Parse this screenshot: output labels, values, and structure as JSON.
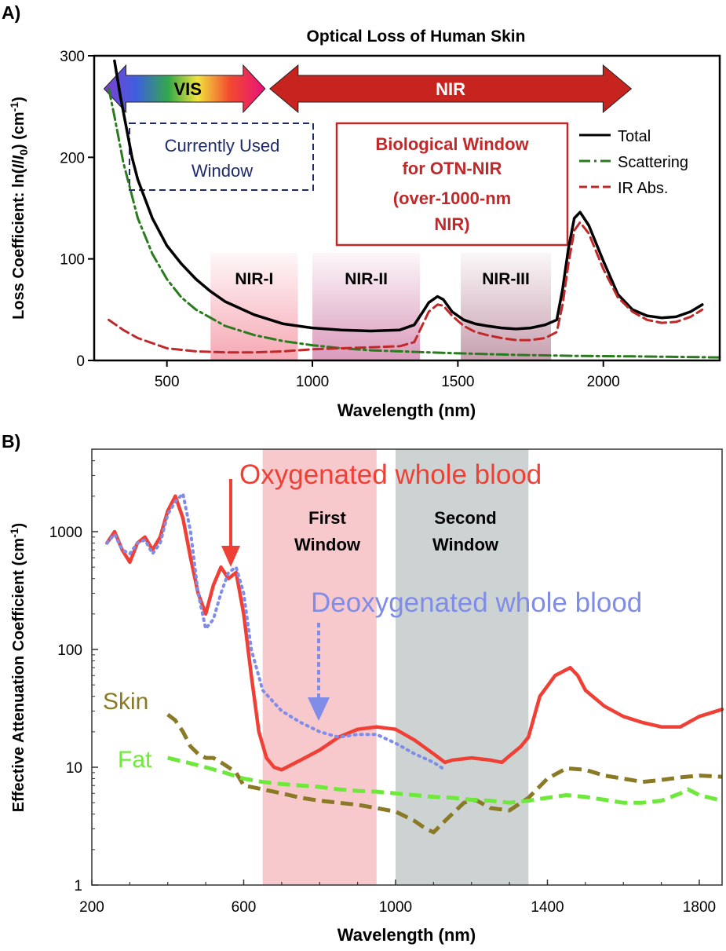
{
  "figure": {
    "panel_a_label": "A)",
    "panel_b_label": "B)"
  },
  "chart_data": [
    {
      "type": "line",
      "title": "Optical Loss of Human Skin",
      "xlabel": "Wavelength (nm)",
      "ylabel_main": "Loss Coefficient: ln(",
      "ylabel_i1": "I",
      "ylabel_mid": "/",
      "ylabel_i2": "I",
      "ylabel_sub": "0",
      "ylabel_tail": ") (cm",
      "ylabel_sup": "-1",
      "ylabel_end": ")",
      "xlim": [
        250,
        2400
      ],
      "ylim": [
        0,
        300
      ],
      "xticks": [
        500,
        1000,
        1500,
        2000
      ],
      "yticks": [
        0,
        100,
        200,
        300
      ],
      "legend": {
        "placement": "top-right",
        "entries": [
          {
            "name": "Total",
            "color": "#000000",
            "style": "solid"
          },
          {
            "name": "Scattering",
            "color": "#2a7a1e",
            "style": "dashdot"
          },
          {
            "name": "IR Abs.",
            "color": "#c0282a",
            "style": "dashed"
          }
        ]
      },
      "series": [
        {
          "name": "Total",
          "color": "#000000",
          "x": [
            320,
            340,
            360,
            380,
            400,
            450,
            500,
            550,
            600,
            650,
            700,
            800,
            900,
            1000,
            1100,
            1200,
            1300,
            1350,
            1380,
            1400,
            1430,
            1450,
            1480,
            1520,
            1560,
            1600,
            1650,
            1700,
            1750,
            1800,
            1840,
            1860,
            1880,
            1900,
            1920,
            1950,
            2000,
            2050,
            2100,
            2150,
            2200,
            2250,
            2300,
            2340
          ],
          "y": [
            295,
            260,
            230,
            200,
            178,
            140,
            113,
            95,
            80,
            68,
            58,
            45,
            36,
            32,
            30,
            29,
            30,
            35,
            48,
            57,
            63,
            60,
            48,
            40,
            36,
            34,
            32,
            31,
            32,
            35,
            40,
            70,
            110,
            140,
            146,
            133,
            98,
            65,
            50,
            44,
            42,
            43,
            48,
            55
          ]
        },
        {
          "name": "Scattering",
          "color": "#2a7a1e",
          "x": [
            300,
            320,
            350,
            400,
            450,
            500,
            550,
            600,
            700,
            800,
            900,
            1000,
            1100,
            1200,
            1300,
            1400,
            1500,
            1700,
            1900,
            2100,
            2400
          ],
          "y": [
            268,
            240,
            195,
            140,
            105,
            80,
            62,
            50,
            34,
            25,
            19,
            15,
            12,
            10,
            9,
            8,
            7,
            5.5,
            4.5,
            4,
            3
          ]
        },
        {
          "name": "IR Abs.",
          "color": "#c0282a",
          "x": [
            300,
            350,
            400,
            500,
            600,
            700,
            800,
            900,
            1000,
            1100,
            1200,
            1300,
            1350,
            1380,
            1400,
            1430,
            1450,
            1480,
            1520,
            1560,
            1600,
            1650,
            1700,
            1750,
            1800,
            1840,
            1860,
            1880,
            1900,
            1920,
            1950,
            2000,
            2050,
            2100,
            2150,
            2200,
            2250,
            2300,
            2340
          ],
          "y": [
            40,
            30,
            22,
            12,
            9,
            8,
            8,
            9,
            11,
            12,
            13,
            14,
            18,
            36,
            48,
            55,
            54,
            44,
            34,
            28,
            25,
            22,
            20,
            20,
            22,
            28,
            55,
            95,
            128,
            136,
            125,
            90,
            62,
            48,
            40,
            37,
            38,
            43,
            50
          ]
        }
      ],
      "regions": [
        {
          "label": "NIR-I",
          "from": 650,
          "to": 950,
          "color": "#f5a3b0"
        },
        {
          "label": "NIR-II",
          "from": 1000,
          "to": 1370,
          "color": "#d895b8"
        },
        {
          "label": "NIR-III",
          "from": 1510,
          "to": 1820,
          "color": "#c49aaa"
        }
      ],
      "arrows": [
        {
          "label": "VIS",
          "from": 300,
          "to": 870
        },
        {
          "label": "NIR",
          "from": 870,
          "to": 2080
        }
      ],
      "annotations": {
        "current_window": [
          "Currently Used",
          "Window"
        ],
        "bio_window": [
          "Biological Window",
          "for OTN-NIR",
          "(over-1000-nm",
          "NIR)"
        ]
      }
    },
    {
      "type": "line",
      "xlabel": "Wavelength (nm)",
      "ylabel": "Effective Attenuation Coefficient (cm",
      "ylabel_sup": "-1",
      "ylabel_end": ")",
      "xscale": "linear",
      "yscale": "log",
      "xlim": [
        200,
        1860
      ],
      "ylim": [
        1,
        5000
      ],
      "xticks": [
        200,
        600,
        1000,
        1400,
        1800
      ],
      "yticks": [
        1,
        10,
        100,
        1000
      ],
      "regions": [
        {
          "label_lines": [
            "First",
            "Window"
          ],
          "from": 650,
          "to": 950,
          "color": "#f8c9cc"
        },
        {
          "label_lines": [
            "Second",
            "Window"
          ],
          "from": 1000,
          "to": 1350,
          "color": "#cdd3d3"
        }
      ],
      "series": [
        {
          "name": "Oxygenated whole blood",
          "color": "#f04036",
          "style": "solid",
          "x": [
            240,
            260,
            280,
            300,
            320,
            340,
            360,
            380,
            400,
            420,
            440,
            460,
            480,
            500,
            520,
            540,
            560,
            580,
            600,
            620,
            640,
            660,
            680,
            700,
            750,
            800,
            850,
            900,
            950,
            1000,
            1050,
            1100,
            1130,
            1150,
            1200,
            1250,
            1280,
            1300,
            1330,
            1350,
            1380,
            1420,
            1460,
            1480,
            1500,
            1550,
            1600,
            1650,
            1700,
            1750,
            1800,
            1860
          ],
          "y": [
            800,
            1000,
            700,
            550,
            800,
            900,
            700,
            900,
            1500,
            2000,
            1300,
            600,
            300,
            200,
            350,
            500,
            400,
            450,
            200,
            60,
            20,
            12,
            10,
            9.5,
            11.5,
            14,
            18,
            21,
            22,
            21,
            17,
            13,
            11,
            11.5,
            12,
            11.5,
            11,
            12.5,
            15,
            18,
            40,
            60,
            70,
            60,
            45,
            33,
            27,
            24,
            22,
            22,
            27,
            31
          ]
        },
        {
          "name": "Deoxygenated whole blood",
          "color": "#7f8ce8",
          "style": "dotted",
          "x": [
            240,
            260,
            280,
            300,
            320,
            340,
            360,
            380,
            400,
            420,
            440,
            460,
            480,
            500,
            520,
            540,
            560,
            580,
            600,
            620,
            650,
            700,
            750,
            800,
            850,
            900,
            950,
            1000,
            1050,
            1100,
            1130
          ],
          "y": [
            800,
            950,
            700,
            650,
            800,
            850,
            650,
            800,
            1400,
            1800,
            2100,
            1000,
            300,
            150,
            180,
            300,
            450,
            500,
            300,
            100,
            45,
            30,
            24,
            20,
            18,
            19,
            19,
            16,
            13,
            11,
            9.5
          ]
        },
        {
          "name": "Skin",
          "color": "#8a7a26",
          "style": "dashed",
          "x": [
            400,
            420,
            440,
            460,
            480,
            500,
            520,
            540,
            560,
            580,
            600,
            650,
            700,
            750,
            800,
            850,
            900,
            950,
            1000,
            1050,
            1080,
            1100,
            1130,
            1180,
            1210,
            1250,
            1300,
            1350,
            1400,
            1450,
            1500,
            1550,
            1600,
            1650,
            1700,
            1750,
            1800,
            1860
          ],
          "y": [
            28,
            25,
            20,
            15,
            13,
            12,
            12,
            11,
            10,
            9,
            7,
            6.5,
            6,
            5.5,
            5.2,
            5,
            4.8,
            4.5,
            4.2,
            3.5,
            3,
            2.8,
            3.5,
            5,
            5.3,
            4.5,
            4.3,
            5.5,
            8,
            9.8,
            9.5,
            8.5,
            8,
            7.5,
            7.8,
            8.2,
            8.5,
            8.3
          ]
        },
        {
          "name": "Fat",
          "color": "#6ee83a",
          "style": "dashed",
          "x": [
            400,
            450,
            500,
            550,
            600,
            650,
            700,
            750,
            800,
            850,
            900,
            950,
            1000,
            1050,
            1100,
            1150,
            1200,
            1250,
            1300,
            1350,
            1400,
            1450,
            1500,
            1550,
            1600,
            1650,
            1700,
            1750,
            1770,
            1800,
            1860
          ],
          "y": [
            12,
            11,
            10,
            9,
            8,
            7.5,
            7.2,
            7,
            6.8,
            6.5,
            6.3,
            6.2,
            6,
            5.8,
            5.6,
            5.5,
            5.3,
            5.2,
            5,
            5.2,
            5.5,
            5.8,
            5.6,
            5.3,
            5,
            5,
            5.2,
            6,
            6.5,
            5.8,
            5.2
          ]
        }
      ],
      "annotations": {
        "oxy_label": "Oxygenated whole blood",
        "deoxy_label": "Deoxygenated whole blood",
        "skin_label": "Skin",
        "fat_label": "Fat"
      }
    }
  ],
  "colors": {
    "vis_arrow_stops": [
      "#7d3fd1",
      "#3f5fe0",
      "#33a84a",
      "#f1e33c",
      "#f24a2e",
      "#e8117a"
    ],
    "nir_arrow": "#c8241f",
    "current_window_text": "#1e2a6a",
    "bio_window_text": "#c0282a"
  }
}
